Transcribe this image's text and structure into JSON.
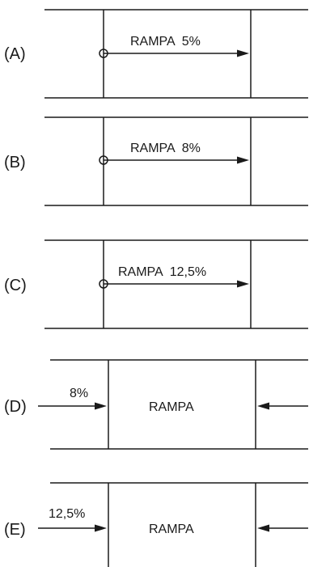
{
  "panels": [
    {
      "id": "A",
      "label": "(A)",
      "ramp_text": "RAMPA  5%"
    },
    {
      "id": "B",
      "label": "(B)",
      "ramp_text": "RAMPA  8%"
    },
    {
      "id": "C",
      "label": "(C)",
      "ramp_text": "RAMPA  12,5%"
    },
    {
      "id": "D",
      "label": "(D)",
      "slope_text": "8%",
      "ramp_text": "RAMPA"
    },
    {
      "id": "E",
      "label": "(E)",
      "slope_text": "12,5%",
      "ramp_text": "RAMPA"
    }
  ]
}
